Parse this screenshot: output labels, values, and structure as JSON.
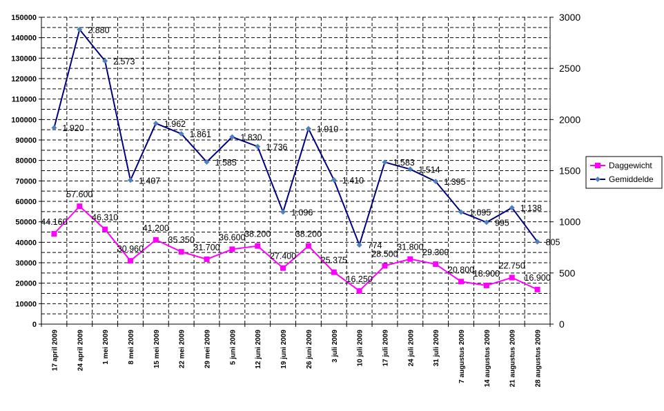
{
  "chart_data": {
    "type": "line",
    "categories": [
      "17 april 2009",
      "24 april 2009",
      "1 mei 2009",
      "8 mei 2009",
      "15 mei 2009",
      "22 mei 2009",
      "29 mei 2009",
      "5 juni 2009",
      "12 juni 2009",
      "19 juni 2009",
      "26 juni 2009",
      "3 juli 2009",
      "10 juli 2009",
      "17 juli 2009",
      "24 juli 2009",
      "31 juli 2009",
      "7 augustus 2009",
      "14 augustus 2009",
      "21 augustus 2009",
      "28 augustus 2009"
    ],
    "y_left": {
      "min": 0,
      "max": 150000,
      "step": 10000,
      "tick_labels": [
        "0",
        "10000",
        "20000",
        "30000",
        "40000",
        "50000",
        "60000",
        "70000",
        "80000",
        "90000",
        "100000",
        "110000",
        "120000",
        "130000",
        "140000",
        "150000"
      ]
    },
    "y_right": {
      "min": 0,
      "max": 3000,
      "step": 500,
      "tick_labels": [
        "0",
        "500",
        "1000",
        "1500",
        "2000",
        "2500",
        "3000"
      ]
    },
    "grid": true,
    "legend_position": "right",
    "series": [
      {
        "name": "Daggewicht",
        "axis": "left",
        "color": "#ff00ff",
        "marker": "square",
        "values": [
          44160,
          57600,
          46310,
          30960,
          41200,
          35350,
          31700,
          36600,
          38200,
          27400,
          38200,
          25375,
          16250,
          28500,
          31800,
          29300,
          20800,
          18900,
          22750,
          16900
        ],
        "labels": [
          "44.160",
          "57.600",
          "46.310",
          "30.960",
          "41.200",
          "35.350",
          "31.700",
          "36.600",
          "38.200",
          "27.400",
          "38.200",
          "25.375",
          "16.250",
          "28.500",
          "31.800",
          "29.300",
          "20.800",
          "18.900",
          "22.750",
          "16.900"
        ]
      },
      {
        "name": "Gemiddelde",
        "axis": "right",
        "color": "#000080",
        "marker_color": "#4f81bd",
        "marker": "diamond",
        "values": [
          1920,
          2880,
          2573,
          1407,
          1962,
          1861,
          1585,
          1830,
          1736,
          1096,
          1910,
          1410,
          774,
          1583,
          1514,
          1395,
          1095,
          995,
          1138,
          805
        ],
        "labels": [
          "1.920",
          "2.880",
          "2.573",
          "1.407",
          "1.962",
          "1.861",
          "1.585",
          "1.830",
          "1.736",
          "1.096",
          "1.910",
          "1.410",
          "774",
          "1.583",
          "1.514",
          "1.395",
          "1.095",
          "995",
          "1.138",
          "805"
        ]
      }
    ]
  }
}
